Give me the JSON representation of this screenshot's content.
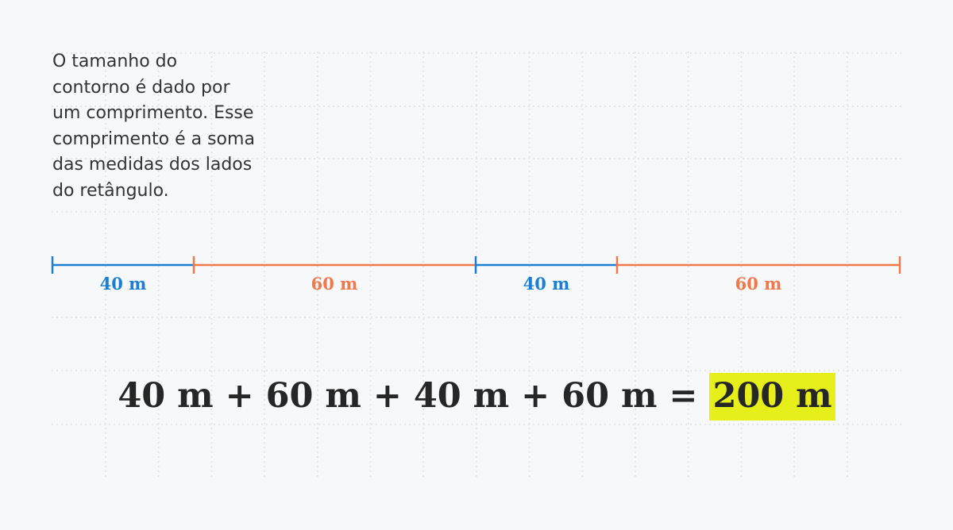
{
  "text": {
    "lines": [
      "O tamanho do",
      "contorno é dado por",
      "um comprimento. Esse",
      "comprimento é a soma",
      "das medidas dos lados",
      "do retângulo."
    ]
  },
  "segments": [
    "40 m",
    "60 m",
    "40 m",
    "60 m"
  ],
  "equation": {
    "expression": "40 m + 60 m + 40 m + 60 m =",
    "result": "200 m"
  }
}
